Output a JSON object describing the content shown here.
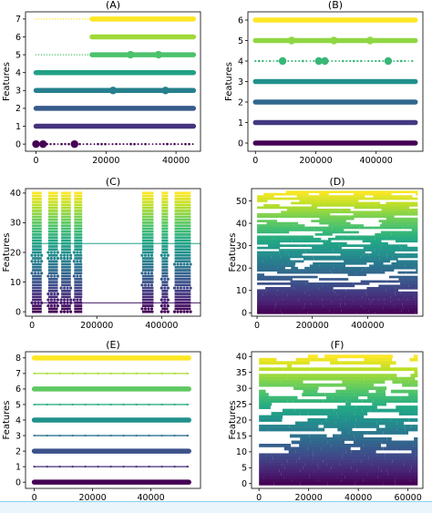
{
  "figure": {
    "bottom_strip_color": "#8fd2f0"
  },
  "chart_data": [
    {
      "panel": "(A)",
      "type": "scatter",
      "title": "(A)",
      "xlabel": "",
      "ylabel": "Features",
      "xlim": [
        -3000,
        47000
      ],
      "ylim": [
        -0.4,
        7.4
      ],
      "xticks": [
        0,
        20000,
        40000
      ],
      "yticks": [
        0,
        1,
        2,
        3,
        4,
        5,
        6,
        7
      ],
      "colormap": "viridis",
      "features": [
        {
          "y": 0,
          "start": 0,
          "end": 45000,
          "style": "sparse",
          "big_dots": [
            0,
            2000,
            11000
          ]
        },
        {
          "y": 1,
          "start": 0,
          "end": 45000,
          "style": "dense"
        },
        {
          "y": 2,
          "start": 0,
          "end": 45000,
          "style": "dense"
        },
        {
          "y": 3,
          "start": 0,
          "end": 45000,
          "style": "dense",
          "big_dots": [
            22000,
            37000
          ]
        },
        {
          "y": 4,
          "start": 0,
          "end": 45000,
          "style": "dense"
        },
        {
          "y": 5,
          "start": 0,
          "end": 45000,
          "style": "dense",
          "sparse_until": 16000,
          "big_dots": [
            27000,
            35000
          ]
        },
        {
          "y": 6,
          "start": 16000,
          "end": 45000,
          "style": "dense",
          "sparse_until": 0
        },
        {
          "y": 7,
          "start": 0,
          "end": 45000,
          "style": "dense",
          "sparse_until": 16000
        }
      ]
    },
    {
      "panel": "(B)",
      "type": "scatter",
      "title": "(B)",
      "xlabel": "",
      "ylabel": "Features",
      "xlim": [
        -25000,
        555000
      ],
      "ylim": [
        -0.4,
        6.4
      ],
      "xticks": [
        0,
        200000,
        400000
      ],
      "yticks": [
        0,
        1,
        2,
        3,
        4,
        5,
        6
      ],
      "colormap": "viridis",
      "features": [
        {
          "y": 0,
          "start": 0,
          "end": 530000,
          "style": "dense"
        },
        {
          "y": 1,
          "start": 0,
          "end": 530000,
          "style": "dense"
        },
        {
          "y": 2,
          "start": 0,
          "end": 530000,
          "style": "dense"
        },
        {
          "y": 3,
          "start": 0,
          "end": 530000,
          "style": "dense"
        },
        {
          "y": 4,
          "start": 0,
          "end": 530000,
          "style": "sparse",
          "big_dots": [
            90000,
            210000,
            230000,
            440000
          ]
        },
        {
          "y": 5,
          "start": 0,
          "end": 530000,
          "style": "dense",
          "big_dots": [
            120000,
            260000,
            380000
          ]
        },
        {
          "y": 6,
          "start": 0,
          "end": 530000,
          "style": "dense"
        }
      ]
    },
    {
      "panel": "(C)",
      "type": "scatter",
      "title": "(C)",
      "xlabel": "",
      "ylabel": "Features",
      "xlim": [
        -20000,
        520000
      ],
      "ylim": [
        -1.5,
        41.5
      ],
      "xticks": [
        0,
        200000,
        400000
      ],
      "yticks": [
        0,
        10,
        20,
        30,
        40
      ],
      "colormap": "viridis",
      "n_features": 41,
      "active_intervals": [
        [
          0,
          30000
        ],
        [
          50000,
          80000
        ],
        [
          90000,
          120000
        ],
        [
          130000,
          155000
        ],
        [
          340000,
          375000
        ],
        [
          400000,
          420000
        ],
        [
          440000,
          490000
        ]
      ],
      "continuous_features": [
        3,
        23
      ]
    },
    {
      "panel": "(D)",
      "type": "scatter",
      "title": "(D)",
      "xlabel": "",
      "ylabel": "Features",
      "xlim": [
        -20000,
        600000
      ],
      "ylim": [
        -1.5,
        55.5
      ],
      "xticks": [
        0,
        200000,
        400000
      ],
      "yticks": [
        0,
        10,
        20,
        30,
        40,
        50
      ],
      "colormap": "viridis",
      "n_features": 55
    },
    {
      "panel": "(E)",
      "type": "scatter",
      "title": "(E)",
      "xlabel": "",
      "ylabel": "Features",
      "xlim": [
        -3000,
        57000
      ],
      "ylim": [
        -0.4,
        8.4
      ],
      "xticks": [
        0,
        20000,
        40000
      ],
      "yticks": [
        0,
        1,
        2,
        3,
        4,
        5,
        6,
        7,
        8
      ],
      "colormap": "viridis",
      "features": [
        {
          "y": 0,
          "start": 0,
          "end": 53000,
          "style": "dense"
        },
        {
          "y": 1,
          "start": 0,
          "end": 53000,
          "style": "line"
        },
        {
          "y": 2,
          "start": 0,
          "end": 53000,
          "style": "dense"
        },
        {
          "y": 3,
          "start": 0,
          "end": 53000,
          "style": "line"
        },
        {
          "y": 4,
          "start": 0,
          "end": 53000,
          "style": "dense"
        },
        {
          "y": 5,
          "start": 0,
          "end": 53000,
          "style": "line"
        },
        {
          "y": 6,
          "start": 0,
          "end": 53000,
          "style": "dense"
        },
        {
          "y": 7,
          "start": 0,
          "end": 53000,
          "style": "line"
        },
        {
          "y": 8,
          "start": 0,
          "end": 53000,
          "style": "dense"
        }
      ]
    },
    {
      "panel": "(F)",
      "type": "scatter",
      "title": "(F)",
      "xlabel": "",
      "ylabel": "Features",
      "xlim": [
        -3000,
        66000
      ],
      "ylim": [
        -1.5,
        41.5
      ],
      "xticks": [
        0,
        20000,
        40000,
        60000
      ],
      "yticks": [
        0,
        5,
        10,
        15,
        20,
        25,
        30,
        35,
        40
      ],
      "colormap": "viridis",
      "n_features": 41
    }
  ]
}
